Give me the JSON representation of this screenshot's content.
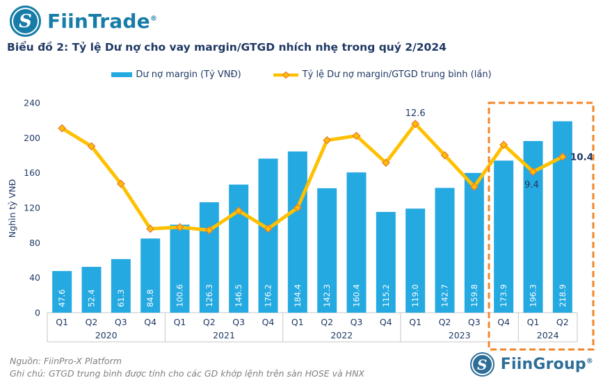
{
  "brand": {
    "header_logo_text": "FiinTrade",
    "footer_logo_text": "FiinGroup",
    "logo_monogram": "S",
    "registered_mark": "®"
  },
  "title": "Biểu đồ 2: Tỷ lệ Dư nợ cho vay margin/GTGD nhích nhẹ trong quý 2/2024",
  "colors": {
    "bar": "#24A9E1",
    "line": "#FFC000",
    "marker_fill": "#FFC000",
    "marker_border": "#ED7D31",
    "highlight_box": "#F2862A",
    "axis_text": "#1F3864",
    "annotation_text": "#1F3864",
    "bar_label": "#FFFFFF",
    "grid_line": "#C6C6C6",
    "title_text": "#1F3864",
    "footer_text": "#7F7F7F"
  },
  "chart_data": {
    "type": "bar+line",
    "title": "Biểu đồ 2: Tỷ lệ Dư nợ cho vay margin/GTGD nhích nhẹ trong quý 2/2024",
    "quarters": [
      "Q1",
      "Q2",
      "Q3",
      "Q4",
      "Q1",
      "Q2",
      "Q3",
      "Q4",
      "Q1",
      "Q2",
      "Q3",
      "Q4",
      "Q1",
      "Q2",
      "Q3",
      "Q4",
      "Q1",
      "Q2"
    ],
    "year_groups": [
      {
        "label": "2020",
        "count": 4
      },
      {
        "label": "2021",
        "count": 4
      },
      {
        "label": "2022",
        "count": 4
      },
      {
        "label": "2023",
        "count": 4
      },
      {
        "label": "2024",
        "count": 2
      }
    ],
    "series": [
      {
        "name": "Dư nợ margin (Tỷ VNĐ)",
        "type": "bar",
        "values": [
          47.6,
          52.4,
          61.3,
          84.8,
          100.6,
          126.3,
          146.5,
          176.2,
          184.4,
          142.3,
          160.4,
          115.2,
          119.0,
          142.7,
          159.8,
          173.9,
          196.3,
          218.9
        ]
      },
      {
        "name": "Tỷ lệ Dư nợ margin/GTGD trung bình (lần)",
        "type": "line",
        "values": [
          12.3,
          11.1,
          8.6,
          5.6,
          5.7,
          5.5,
          6.8,
          5.6,
          7.0,
          11.5,
          11.8,
          10.0,
          12.6,
          10.5,
          8.4,
          11.2,
          9.4,
          10.4
        ]
      }
    ],
    "annotations": [
      {
        "index": 12,
        "text": "12.6",
        "position": "above",
        "bold": false
      },
      {
        "index": 16,
        "text": "9.4",
        "position": "below",
        "bold": false
      },
      {
        "index": 17,
        "text": "10.4",
        "position": "right",
        "bold": true
      }
    ],
    "ylabel": "Nghìn tỷ VNĐ",
    "yticks": [
      0,
      40,
      80,
      120,
      160,
      200,
      240
    ],
    "ylim": [
      0,
      240
    ],
    "y2lim": [
      0,
      14
    ],
    "grid": false,
    "legend_position": "top",
    "highlight_box": {
      "start_index": 15,
      "end_index": 17
    }
  },
  "footer": {
    "source": "Nguồn: FiinPro-X Platform",
    "note": "Ghi chú: GTGD trung bình được tính cho các GD khớp lệnh trên sàn HOSE và HNX"
  }
}
